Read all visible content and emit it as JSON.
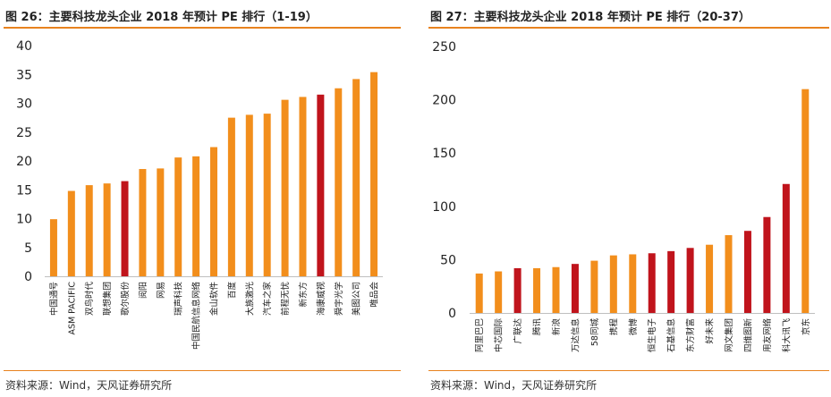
{
  "colors": {
    "accent": "#E8821E",
    "bar": "#F28E1C",
    "highlight": "#C0141C"
  },
  "source_text": "资料来源：Wind，天风证券研究所",
  "chart_data": [
    {
      "type": "bar",
      "title": "图 26：主要科技龙头企业 2018 年预计 PE 排行（1-19）",
      "categories": [
        "中国通号",
        "ASM PACIFIC",
        "双鸟时代",
        "联想集团",
        "歌尔股份",
        "阅阳",
        "网易",
        "瑞声科技",
        "中国民航信息网络",
        "金山软件",
        "百度",
        "大族激光",
        "汽车之家",
        "前程无忧",
        "新东方",
        "海康威视",
        "舜宇光学",
        "美图公司",
        "唯品会"
      ],
      "values": [
        9.9,
        14.8,
        15.8,
        16.1,
        16.5,
        18.6,
        18.7,
        20.6,
        20.8,
        22.4,
        27.5,
        28.0,
        28.2,
        30.6,
        31.1,
        31.5,
        32.6,
        34.2,
        35.4
      ],
      "highlight": [
        false,
        false,
        false,
        false,
        true,
        false,
        false,
        false,
        false,
        false,
        false,
        false,
        false,
        false,
        false,
        true,
        false,
        false,
        false
      ],
      "ylim": [
        0,
        40
      ],
      "yticks": [
        0,
        5,
        10,
        15,
        20,
        25,
        30,
        35,
        40
      ],
      "grid": false,
      "legend": "none"
    },
    {
      "type": "bar",
      "title": "图 27：主要科技龙头企业 2018 年预计 PE 排行（20-37）",
      "categories": [
        "阿里巴巴",
        "中芯国际",
        "广联达",
        "腾讯",
        "新浪",
        "万达信息",
        "58同城",
        "携程",
        "微博",
        "恒生电子",
        "石基信息",
        "东方财富",
        "好未来",
        "网文集团",
        "四维图新",
        "用友网络",
        "科大讯飞",
        "京东"
      ],
      "values": [
        37,
        39,
        42,
        42,
        43,
        46,
        49,
        54,
        55,
        56,
        58,
        61,
        64,
        73,
        77,
        90,
        121,
        210
      ],
      "highlight": [
        false,
        false,
        true,
        false,
        false,
        true,
        false,
        false,
        false,
        true,
        true,
        true,
        false,
        false,
        true,
        true,
        true,
        false
      ],
      "ylim": [
        0,
        250
      ],
      "yticks": [
        0,
        50,
        100,
        150,
        200,
        250
      ],
      "grid": false,
      "legend": "none"
    }
  ]
}
